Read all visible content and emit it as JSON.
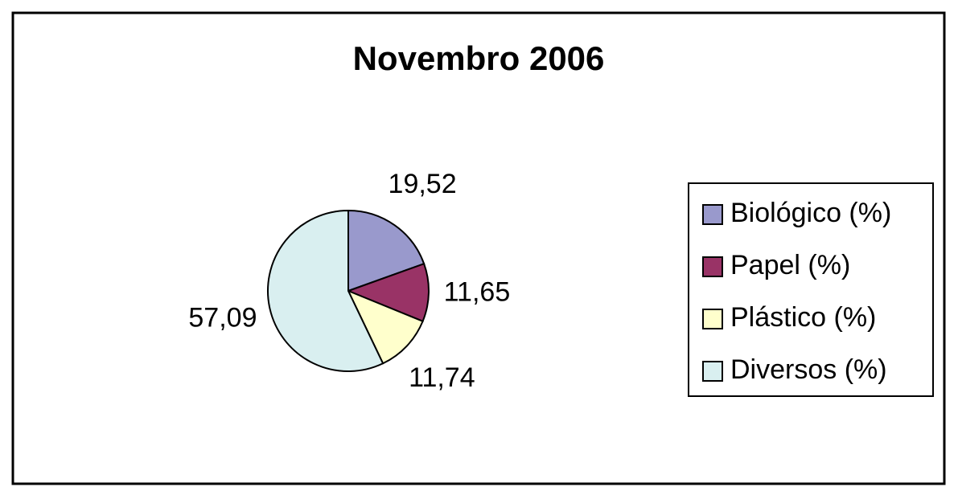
{
  "chart_data": {
    "type": "pie",
    "title": "Novembro 2006",
    "categories": [
      "Biológico (%)",
      "Papel (%)",
      "Plástico (%)",
      "Diversos (%)"
    ],
    "values": [
      19.52,
      11.65,
      11.74,
      57.09
    ],
    "value_labels": [
      "19,52",
      "11,65",
      "11,74",
      "57,09"
    ],
    "colors": [
      "#9999cc",
      "#993366",
      "#ffffcc",
      "#d9eff0"
    ],
    "legend": "right"
  }
}
